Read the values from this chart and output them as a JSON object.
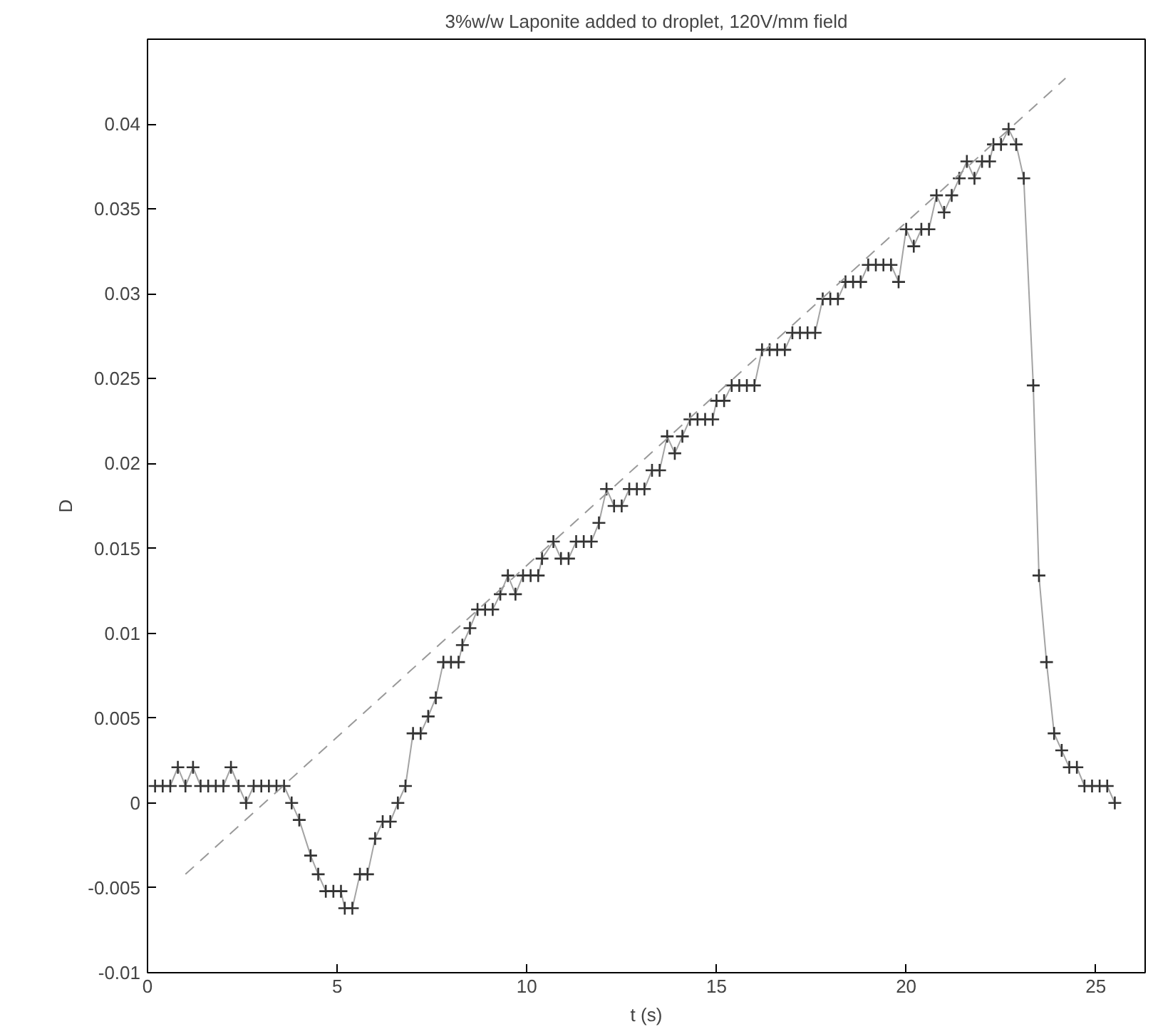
{
  "chart_data": {
    "type": "line",
    "title": "3%w/w Laponite added to droplet, 120V/mm field",
    "xlabel": "t (s)",
    "ylabel": "D",
    "xlim": [
      0,
      26.3
    ],
    "ylim": [
      -0.01,
      0.045
    ],
    "xticks": [
      0,
      5,
      10,
      15,
      20,
      25
    ],
    "yticks": [
      -0.01,
      -0.005,
      0,
      0.005,
      0.01,
      0.015,
      0.02,
      0.025,
      0.03,
      0.035,
      0.04
    ],
    "grid": false,
    "series": [
      {
        "color": "#333333",
        "marker": "cross",
        "line_style": "solid",
        "x": [
          0.2,
          0.4,
          0.6,
          0.8,
          1.0,
          1.2,
          1.4,
          1.6,
          1.8,
          2.0,
          2.2,
          2.4,
          2.6,
          2.8,
          3.0,
          3.2,
          3.4,
          3.6,
          3.8,
          4.0,
          4.3,
          4.5,
          4.7,
          4.9,
          5.1,
          5.2,
          5.4,
          5.6,
          5.8,
          6.0,
          6.2,
          6.4,
          6.6,
          6.8,
          7.0,
          7.2,
          7.4,
          7.6,
          7.8,
          8.0,
          8.2,
          8.3,
          8.5,
          8.7,
          8.9,
          9.1,
          9.3,
          9.5,
          9.7,
          9.9,
          10.1,
          10.3,
          10.4,
          10.7,
          10.9,
          11.1,
          11.3,
          11.5,
          11.7,
          11.9,
          12.1,
          12.3,
          12.5,
          12.7,
          12.9,
          13.1,
          13.3,
          13.5,
          13.7,
          13.9,
          14.1,
          14.3,
          14.5,
          14.7,
          14.9,
          15.0,
          15.2,
          15.4,
          15.6,
          15.8,
          16.0,
          16.2,
          16.4,
          16.6,
          16.8,
          17.0,
          17.2,
          17.4,
          17.6,
          17.8,
          18.0,
          18.2,
          18.4,
          18.6,
          18.8,
          19.0,
          19.2,
          19.4,
          19.6,
          19.8,
          20.0,
          20.2,
          20.4,
          20.6,
          20.8,
          21.0,
          21.2,
          21.4,
          21.6,
          21.8,
          22.0,
          22.2,
          22.3,
          22.5,
          22.7,
          22.9,
          23.1,
          23.35,
          23.5,
          23.7,
          23.9,
          24.1,
          24.3,
          24.5,
          24.7,
          24.9,
          25.1,
          25.3,
          25.5
        ],
        "values": [
          0.001,
          0.001,
          0.001,
          0.0021,
          0.001,
          0.0021,
          0.001,
          0.001,
          0.001,
          0.001,
          0.0021,
          0.001,
          0,
          0.001,
          0.001,
          0.001,
          0.001,
          0.001,
          0,
          -0.001,
          -0.0031,
          -0.0042,
          -0.0052,
          -0.0052,
          -0.0052,
          -0.0062,
          -0.0062,
          -0.0042,
          -0.0042,
          -0.0021,
          -0.0011,
          -0.0011,
          0,
          0.001,
          0.0041,
          0.0041,
          0.0051,
          0.0062,
          0.0083,
          0.0083,
          0.0083,
          0.0093,
          0.0103,
          0.0114,
          0.0114,
          0.0114,
          0.0123,
          0.0134,
          0.0123,
          0.0134,
          0.0134,
          0.0134,
          0.0144,
          0.0154,
          0.0144,
          0.0144,
          0.0154,
          0.0154,
          0.0154,
          0.0165,
          0.0185,
          0.0175,
          0.0175,
          0.0185,
          0.0185,
          0.0185,
          0.0196,
          0.0196,
          0.0216,
          0.0206,
          0.0216,
          0.0226,
          0.0226,
          0.0226,
          0.0226,
          0.0237,
          0.0237,
          0.0246,
          0.0246,
          0.0246,
          0.0246,
          0.0267,
          0.0267,
          0.0267,
          0.0267,
          0.0277,
          0.0277,
          0.0277,
          0.0277,
          0.0297,
          0.0297,
          0.0297,
          0.0307,
          0.0307,
          0.0307,
          0.0317,
          0.0317,
          0.0317,
          0.0317,
          0.0307,
          0.0338,
          0.0328,
          0.0338,
          0.0338,
          0.0358,
          0.0348,
          0.0358,
          0.0368,
          0.0378,
          0.0368,
          0.0378,
          0.0378,
          0.0388,
          0.0388,
          0.0397,
          0.0388,
          0.0368,
          0.0246,
          0.0134,
          0.0083,
          0.0041,
          0.0031,
          0.0021,
          0.0021,
          0.001,
          0.001,
          0.001,
          0.001,
          0
        ]
      },
      {
        "color": "#999999",
        "marker": "none",
        "line_style": "dashed",
        "x": [
          1.0,
          24.2
        ],
        "values": [
          -0.0042,
          0.0427
        ]
      }
    ]
  }
}
